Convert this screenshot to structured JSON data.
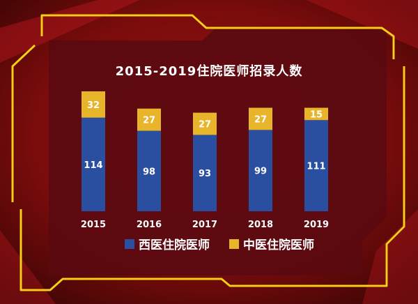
{
  "colors": {
    "background": "#7a0a0a",
    "panel": "#5a0a10",
    "frame": "#f5c400",
    "western_series": "#2a4fa0",
    "chinese_series": "#e8b52a"
  },
  "chart_data": {
    "type": "bar",
    "stacked": true,
    "title": "2015-2019住院医师招录人数",
    "categories": [
      "2015",
      "2016",
      "2017",
      "2018",
      "2019"
    ],
    "series": [
      {
        "name": "西医住院医师",
        "values": [
          114,
          98,
          93,
          99,
          111
        ],
        "color": "#2a4fa0"
      },
      {
        "name": "中医住院医师",
        "values": [
          32,
          27,
          27,
          27,
          15
        ],
        "color": "#e8b52a"
      }
    ],
    "xlabel": "",
    "ylabel": "",
    "grid": false,
    "legend_position": "bottom"
  }
}
